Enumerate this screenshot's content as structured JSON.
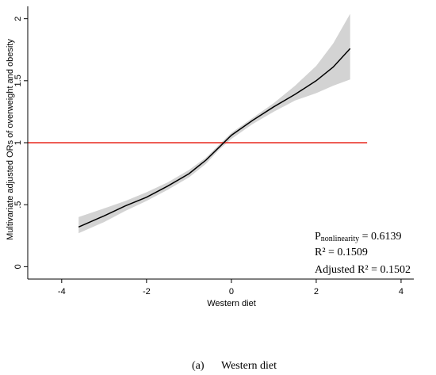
{
  "chart_data": {
    "type": "line",
    "xlabel": "Western diet",
    "ylabel": "Multivariate adjusted ORs of overweight and obesity",
    "xlim": [
      -4.8,
      4.3
    ],
    "ylim": [
      -0.1,
      2.1
    ],
    "x_ticks": [
      -4,
      -2,
      0,
      2,
      4
    ],
    "x_tick_labels": [
      "-4",
      "-2",
      "0",
      "2",
      "4"
    ],
    "y_ticks": [
      0,
      0.5,
      1,
      1.5,
      2
    ],
    "y_tick_labels": [
      "0",
      ".5",
      "1",
      "1.5",
      "2"
    ],
    "grid": false,
    "series": [
      {
        "color": "#000000",
        "x": [
          -3.6,
          -3.0,
          -2.5,
          -2.0,
          -1.5,
          -1.0,
          -0.6,
          -0.3,
          0.0,
          0.5,
          1.0,
          1.5,
          2.0,
          2.4,
          2.8
        ],
        "y": [
          0.32,
          0.41,
          0.49,
          0.56,
          0.65,
          0.75,
          0.86,
          0.96,
          1.06,
          1.18,
          1.29,
          1.39,
          1.5,
          1.61,
          1.76
        ],
        "ci_upper": [
          0.4,
          0.47,
          0.53,
          0.6,
          0.68,
          0.78,
          0.88,
          0.98,
          1.08,
          1.2,
          1.32,
          1.46,
          1.62,
          1.8,
          2.04
        ],
        "ci_lower": [
          0.27,
          0.36,
          0.45,
          0.53,
          0.62,
          0.72,
          0.83,
          0.94,
          1.03,
          1.15,
          1.25,
          1.34,
          1.4,
          1.46,
          1.51
        ]
      }
    ],
    "reference_line": {
      "y": 1,
      "x_range": [
        -4.8,
        3.2
      ],
      "color": "#e8281e"
    },
    "band_color": "#d3d3d3"
  },
  "annotations": {
    "p_main": "P",
    "p_sub": "nonlinearity",
    "p_value": " = 0.6139",
    "r2_text": "R² = 0.1509",
    "adj_r2_text": "Adjusted R² = 0.1502"
  },
  "caption": {
    "label": "(a)",
    "text": "Western diet"
  }
}
